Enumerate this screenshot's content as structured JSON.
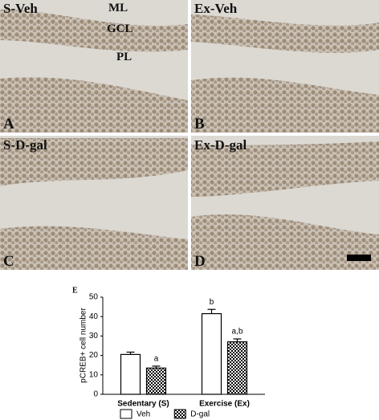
{
  "panels": [
    {
      "title": "S-Veh",
      "letter": "A",
      "regions": [
        "ML",
        "GCL",
        "PL"
      ]
    },
    {
      "title": "Ex-Veh",
      "letter": "B"
    },
    {
      "title": "S-D-gal",
      "letter": "C"
    },
    {
      "title": "Ex-D-gal",
      "letter": "D"
    }
  ],
  "chart_data": {
    "type": "bar",
    "panel_label": "E",
    "y_label": "pCREB+ cell number",
    "categories": [
      "Sedentary (S)",
      "Exercise (Ex)"
    ],
    "series": [
      {
        "name": "Veh",
        "color": "#ffffff",
        "values": [
          20.5,
          41.5
        ],
        "errors": [
          1.2,
          2.2
        ],
        "annotations": [
          null,
          "b"
        ]
      },
      {
        "name": "D-gal",
        "color": "#000000",
        "hatch": "checker",
        "values": [
          13.5,
          27
        ],
        "errors": [
          1,
          1.5
        ],
        "annotations": [
          "a",
          "a,b"
        ]
      }
    ],
    "ylim": [
      0,
      50
    ],
    "yticks": [
      0,
      10,
      20,
      30,
      40,
      50
    ],
    "legend": "bottom"
  }
}
